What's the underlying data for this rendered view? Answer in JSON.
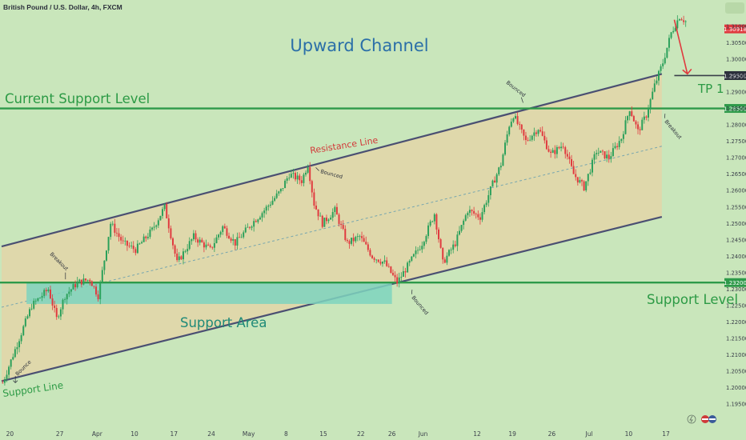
{
  "header": {
    "title": "British Pound / U.S. Dollar, 4h, FXCM"
  },
  "colors": {
    "background": "#c9e6bb",
    "channel_fill": "#e6d3a6",
    "channel_line": "#4a4f72",
    "support_line": "#2e9a4a",
    "support_area": "#7ed3be",
    "bull": "#2aa05a",
    "bear": "#e0393e",
    "title_blue": "#2b6fa8",
    "label_green": "#2c9a45",
    "resistance_red": "#d33a3a",
    "price_badge_red": "#e0393e",
    "badge_dark": "#2b2f3b"
  },
  "chart_data": {
    "type": "candlestick",
    "title": "Upward Channel",
    "ylim": [
      1.1875,
      1.318
    ],
    "y_ticks": [
      1.195,
      1.2,
      1.205,
      1.21,
      1.215,
      1.22,
      1.225,
      1.23,
      1.235,
      1.24,
      1.245,
      1.25,
      1.255,
      1.26,
      1.265,
      1.27,
      1.275,
      1.28,
      1.285,
      1.29,
      1.295,
      1.3,
      1.305,
      1.31
    ],
    "x_ticks": [
      {
        "label": "20",
        "bar": 4
      },
      {
        "label": "27",
        "bar": 28
      },
      {
        "label": "Apr",
        "bar": 46
      },
      {
        "label": "10",
        "bar": 64
      },
      {
        "label": "17",
        "bar": 83
      },
      {
        "label": "24",
        "bar": 101
      },
      {
        "label": "May",
        "bar": 119
      },
      {
        "label": "8",
        "bar": 137
      },
      {
        "label": "15",
        "bar": 155
      },
      {
        "label": "22",
        "bar": 173
      },
      {
        "label": "26",
        "bar": 188
      },
      {
        "label": "Jun",
        "bar": 203
      },
      {
        "label": "12",
        "bar": 229
      },
      {
        "label": "19",
        "bar": 246
      },
      {
        "label": "26",
        "bar": 265
      },
      {
        "label": "Jul",
        "bar": 283
      },
      {
        "label": "10",
        "bar": 302
      },
      {
        "label": "17",
        "bar": 320
      }
    ],
    "bar_count": 330,
    "anchors": [
      [
        0,
        1.2015
      ],
      [
        8,
        1.215
      ],
      [
        14,
        1.225
      ],
      [
        22,
        1.23
      ],
      [
        26,
        1.221
      ],
      [
        30,
        1.228
      ],
      [
        36,
        1.232
      ],
      [
        42,
        1.233
      ],
      [
        46,
        1.228
      ],
      [
        52,
        1.25
      ],
      [
        58,
        1.244
      ],
      [
        64,
        1.242
      ],
      [
        72,
        1.248
      ],
      [
        78,
        1.255
      ],
      [
        84,
        1.238
      ],
      [
        92,
        1.246
      ],
      [
        100,
        1.242
      ],
      [
        106,
        1.249
      ],
      [
        112,
        1.244
      ],
      [
        120,
        1.25
      ],
      [
        126,
        1.254
      ],
      [
        134,
        1.26
      ],
      [
        138,
        1.265
      ],
      [
        144,
        1.263
      ],
      [
        147,
        1.268
      ],
      [
        150,
        1.256
      ],
      [
        154,
        1.25
      ],
      [
        160,
        1.254
      ],
      [
        166,
        1.244
      ],
      [
        172,
        1.246
      ],
      [
        178,
        1.24
      ],
      [
        184,
        1.238
      ],
      [
        190,
        1.232
      ],
      [
        196,
        1.238
      ],
      [
        202,
        1.244
      ],
      [
        208,
        1.253
      ],
      [
        212,
        1.238
      ],
      [
        218,
        1.244
      ],
      [
        224,
        1.254
      ],
      [
        230,
        1.252
      ],
      [
        236,
        1.262
      ],
      [
        240,
        1.268
      ],
      [
        244,
        1.28
      ],
      [
        246,
        1.283
      ],
      [
        252,
        1.275
      ],
      [
        258,
        1.279
      ],
      [
        264,
        1.271
      ],
      [
        270,
        1.274
      ],
      [
        275,
        1.265
      ],
      [
        280,
        1.261
      ],
      [
        286,
        1.272
      ],
      [
        292,
        1.27
      ],
      [
        298,
        1.276
      ],
      [
        302,
        1.285
      ],
      [
        306,
        1.278
      ],
      [
        310,
        1.283
      ],
      [
        314,
        1.292
      ],
      [
        318,
        1.299
      ],
      [
        322,
        1.308
      ],
      [
        326,
        1.313
      ],
      [
        330,
        1.311
      ]
    ],
    "channel": {
      "upper": {
        "from": [
          0,
          1.243
        ],
        "to": [
          318,
          1.2955
        ]
      },
      "lower": {
        "from": [
          0,
          1.202
        ],
        "to": [
          318,
          1.252
        ]
      },
      "mid": {
        "from": [
          0,
          1.2245
        ],
        "to": [
          318,
          1.2735
        ]
      }
    },
    "support_area": {
      "from_bar": 12,
      "to_bar": 188,
      "top": 1.232,
      "bottom": 1.2255
    },
    "levels": [
      {
        "name": "Current Support Level",
        "price": 1.285,
        "badge": "1.28500"
      },
      {
        "name": "Support Level",
        "price": 1.232,
        "badge": "1.23200"
      },
      {
        "name": "TP 1",
        "price": 1.295,
        "badge": "1.29500"
      }
    ],
    "last_price": {
      "price": 1.3092,
      "badge": "1.30918"
    },
    "forecast_arrow": {
      "from": [
        324,
        1.312
      ],
      "to": [
        328,
        1.2955
      ]
    },
    "annotations": {
      "title": "Upward Channel",
      "current_support": "Current Support Level",
      "support_level": "Support Level",
      "support_area": "Support Area",
      "support_line": "Support Line",
      "resistance_line": "Resistance Line",
      "tp1": "TP 1",
      "bounce": "Bounce",
      "breakout_left": "Breakout",
      "bounced_may": "Bounced",
      "bounced_low": "Bounced",
      "bounced_jun": "Bounced",
      "breakout_right": "Breakout"
    }
  }
}
